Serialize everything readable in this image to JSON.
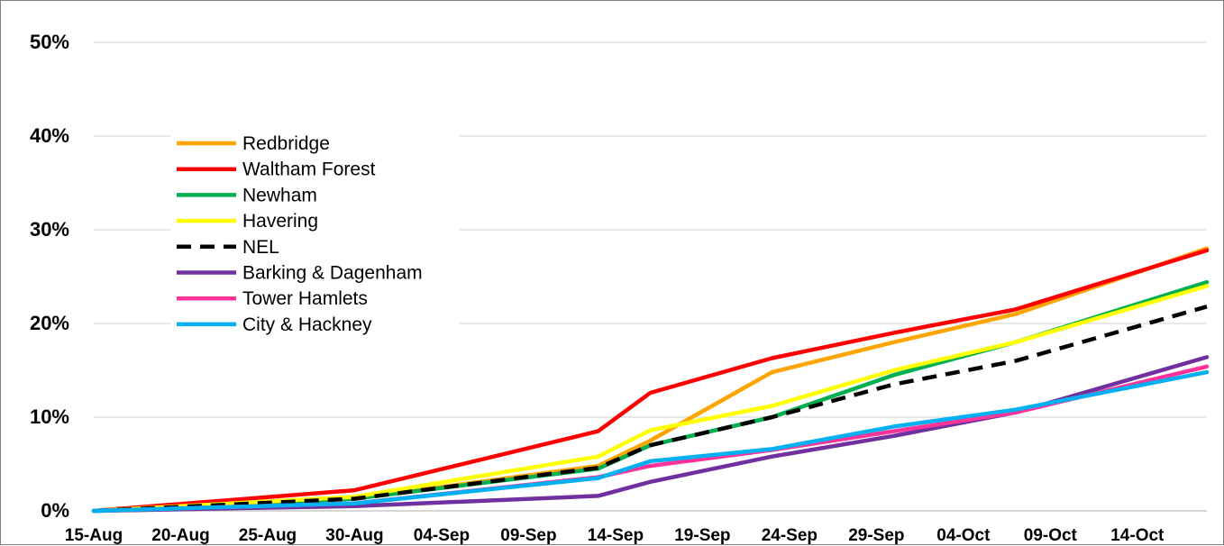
{
  "chart_data": {
    "type": "line",
    "title": "",
    "xlabel": "",
    "ylabel": "",
    "ylim": [
      0,
      50
    ],
    "y_ticks": [
      "0%",
      "10%",
      "20%",
      "30%",
      "40%",
      "50%"
    ],
    "y_tick_values": [
      0,
      10,
      20,
      30,
      40,
      50
    ],
    "x_ticks": [
      "15-Aug",
      "20-Aug",
      "25-Aug",
      "30-Aug",
      "04-Sep",
      "09-Sep",
      "14-Sep",
      "19-Sep",
      "24-Sep",
      "29-Sep",
      "04-Oct",
      "09-Oct",
      "14-Oct"
    ],
    "x_range": [
      "2020-08-15",
      "2020-10-18"
    ],
    "grid": "horizontal",
    "legend_position": "upper-left",
    "x": [
      "2020-08-15",
      "2020-08-30",
      "2020-09-13",
      "2020-09-16",
      "2020-09-23",
      "2020-09-30",
      "2020-10-07",
      "2020-10-18"
    ],
    "series": [
      {
        "name": "Redbridge",
        "color": "#FFA500",
        "dash": "solid",
        "values": [
          0,
          1.3,
          4.8,
          7.5,
          14.8,
          18.0,
          21.0,
          28.0
        ]
      },
      {
        "name": "Waltham Forest",
        "color": "#FF0000",
        "dash": "solid",
        "values": [
          0,
          2.2,
          8.5,
          12.6,
          16.3,
          19.0,
          21.5,
          27.8
        ]
      },
      {
        "name": "Newham",
        "color": "#00B050",
        "dash": "solid",
        "values": [
          0,
          1.3,
          4.5,
          7.0,
          10.0,
          14.5,
          18.0,
          24.4
        ]
      },
      {
        "name": "Havering",
        "color": "#FFFF00",
        "dash": "solid",
        "values": [
          0,
          1.5,
          5.8,
          8.6,
          11.2,
          15.0,
          18.0,
          24.0
        ]
      },
      {
        "name": "NEL",
        "color": "#000000",
        "dash": "dashed",
        "values": [
          0,
          1.3,
          4.6,
          7.0,
          10.0,
          13.5,
          16.0,
          21.8
        ]
      },
      {
        "name": "Barking & Dagenham",
        "color": "#7030A0",
        "dash": "solid",
        "values": [
          0,
          0.5,
          1.6,
          3.1,
          5.8,
          8.0,
          10.5,
          16.4
        ]
      },
      {
        "name": "Tower Hamlets",
        "color": "#FF3399",
        "dash": "solid",
        "values": [
          0,
          0.8,
          3.6,
          4.8,
          6.5,
          8.5,
          10.5,
          15.4
        ]
      },
      {
        "name": "City & Hackney",
        "color": "#00B0F0",
        "dash": "solid",
        "values": [
          0,
          0.8,
          3.5,
          5.3,
          6.6,
          9.0,
          10.8,
          14.8
        ]
      }
    ]
  }
}
